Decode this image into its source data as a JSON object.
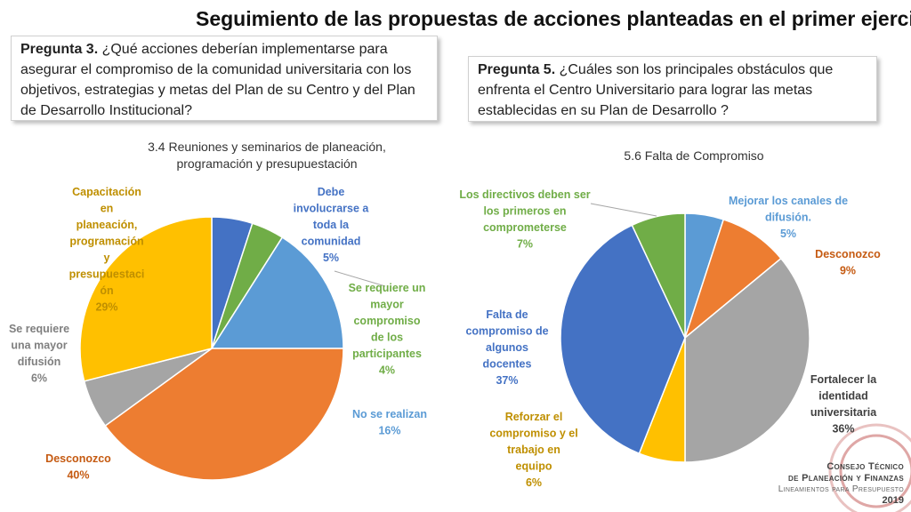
{
  "slide_title": "Seguimiento de las propuestas de acciones planteadas en el primer ejercicio",
  "q3": {
    "label": "Pregunta 3.",
    "text": " ¿Qué acciones deberían implementarse para asegurar el compromiso de la comunidad universitaria con los objetivos, estrategias y metas del Plan de su Centro y del Plan de Desarrollo Institucional?"
  },
  "q5": {
    "label": "Pregunta 5.",
    "text": " ¿Cuáles son los principales obstáculos que enfrenta el Centro Universitario para lograr las metas establecidas en su Plan de Desarrollo ?"
  },
  "footer": {
    "line1": "Consejo Técnico",
    "line2": "de Planeación y Finanzas",
    "line3": "Lineamientos para Presupuesto",
    "year": "2019"
  },
  "chart_data": [
    {
      "type": "pie",
      "title_lines": [
        "3.4 Reuniones y seminarios de planeación,",
        "programación y presupuestación"
      ],
      "slices": [
        {
          "label_lines": [
            "Debe",
            "involucrarse a",
            "toda la",
            "comunidad"
          ],
          "value": 5,
          "pct": "5%",
          "color": "#4472C4"
        },
        {
          "label_lines": [
            "Se requiere un",
            "mayor",
            "compromiso",
            "de los",
            "participantes"
          ],
          "value": 4,
          "pct": "4%",
          "color": "#70AD47"
        },
        {
          "label_lines": [
            "No se realizan"
          ],
          "value": 16,
          "pct": "16%",
          "color": "#5B9BD5"
        },
        {
          "label_lines": [
            "Desconozco"
          ],
          "value": 40,
          "pct": "40%",
          "color": "#ED7D31"
        },
        {
          "label_lines": [
            "Se requiere",
            "una mayor",
            "difusión"
          ],
          "value": 6,
          "pct": "6%",
          "color": "#A5A5A5"
        },
        {
          "label_lines": [
            "Capacitación",
            "en",
            "planeación,",
            "programación",
            "y",
            "presupuestaci",
            "ón"
          ],
          "value": 29,
          "pct": "29%",
          "color": "#FFC000"
        }
      ]
    },
    {
      "type": "pie",
      "title_lines": [
        "5.6 Falta de Compromiso"
      ],
      "slices": [
        {
          "label_lines": [
            "Mejorar los canales de",
            "difusión."
          ],
          "value": 5,
          "pct": "5%",
          "color": "#5B9BD5"
        },
        {
          "label_lines": [
            "Desconozco"
          ],
          "value": 9,
          "pct": "9%",
          "color": "#ED7D31"
        },
        {
          "label_lines": [
            "Fortalecer la",
            "identidad",
            "universitaria"
          ],
          "value": 36,
          "pct": "36%",
          "color": "#A5A5A5"
        },
        {
          "label_lines": [
            "Reforzar el",
            "compromiso y el",
            "trabajo en",
            "equipo"
          ],
          "value": 6,
          "pct": "6%",
          "color": "#FFC000"
        },
        {
          "label_lines": [
            "Falta de",
            "compromiso de",
            "algunos",
            "docentes"
          ],
          "value": 37,
          "pct": "37%",
          "color": "#4472C4"
        },
        {
          "label_lines": [
            "Los directivos deben ser",
            "los primeros en",
            "comprometerse"
          ],
          "value": 7,
          "pct": "7%",
          "color": "#70AD47"
        }
      ]
    }
  ]
}
